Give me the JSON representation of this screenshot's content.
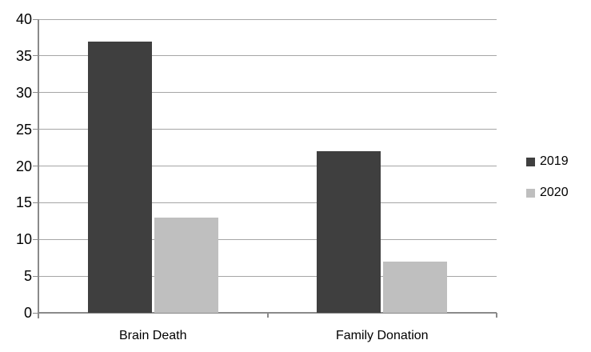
{
  "chart_data": {
    "type": "bar",
    "title": "",
    "xlabel": "",
    "ylabel": "",
    "categories": [
      "Brain Death",
      "Family Donation"
    ],
    "series": [
      {
        "name": "2019",
        "color": "#3f3f3f",
        "values": [
          37,
          22
        ]
      },
      {
        "name": "2020",
        "color": "#bfbfbf",
        "values": [
          13,
          7
        ]
      }
    ],
    "ylim": [
      0,
      40
    ],
    "yticks": [
      0,
      5,
      10,
      15,
      20,
      25,
      30,
      35,
      40
    ],
    "grid": true,
    "legend_position": "right",
    "colors": {
      "gridline": "#a6a6a6",
      "axis": "#8a8a8a",
      "tick_label": "#000000"
    }
  }
}
